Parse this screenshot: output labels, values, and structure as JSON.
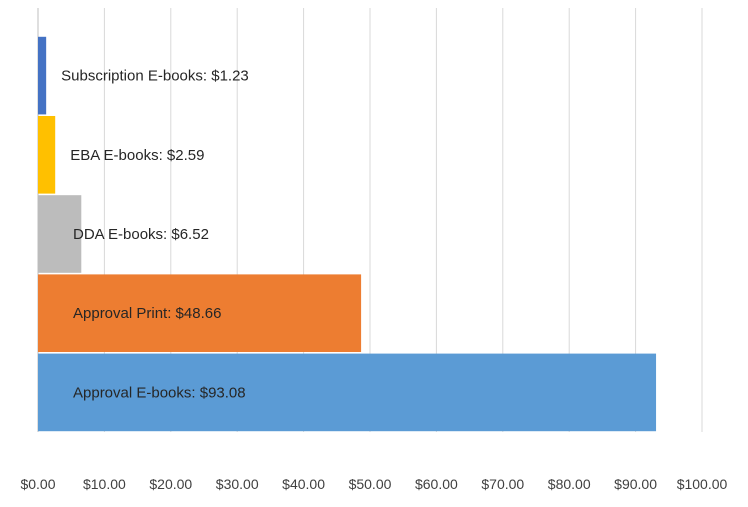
{
  "chart_data": {
    "type": "bar",
    "orientation": "horizontal",
    "title": "",
    "xlabel": "",
    "ylabel": "",
    "xlim": [
      0,
      100
    ],
    "x_ticks": [
      "$0.00",
      "$10.00",
      "$20.00",
      "$30.00",
      "$40.00",
      "$50.00",
      "$60.00",
      "$70.00",
      "$80.00",
      "$90.00",
      "$100.00"
    ],
    "grid": true,
    "legend": "none",
    "bars": [
      {
        "category": "Approval E-books",
        "value": 93.08,
        "label": "Approval E-books: $93.08",
        "color": "#5b9bd5"
      },
      {
        "category": "Approval Print",
        "value": 48.66,
        "label": "Approval Print: $48.66",
        "color": "#ed7d31"
      },
      {
        "category": "DDA E-books",
        "value": 6.52,
        "label": "DDA E-books: $6.52",
        "color": "#bcbcbc"
      },
      {
        "category": "EBA E-books",
        "value": 2.59,
        "label": "EBA E-books: $2.59",
        "color": "#ffc000"
      },
      {
        "category": "Subscription E-books",
        "value": 1.23,
        "label": "Subscription E-books: $1.23",
        "color": "#4472c4"
      }
    ]
  }
}
